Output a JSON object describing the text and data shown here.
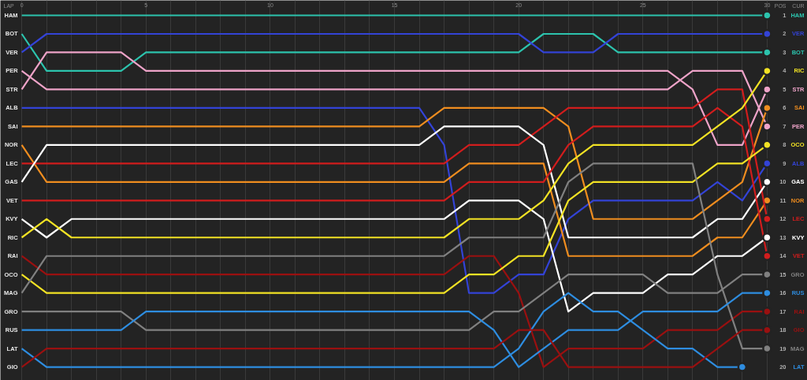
{
  "chart_data": {
    "type": "line",
    "xlabel": "LAP",
    "ylabel": "POS",
    "annotations": [
      "CUR"
    ],
    "x": [
      0,
      1,
      2,
      3,
      4,
      5,
      6,
      7,
      8,
      9,
      10,
      11,
      12,
      13,
      14,
      15,
      16,
      17,
      18,
      19,
      20,
      21,
      22,
      23,
      24,
      25,
      26,
      27,
      28,
      29,
      30
    ],
    "xlim": [
      -0.86,
      31.62
    ],
    "xticks": [
      0,
      {
        "value": 1,
        "label": null
      },
      {
        "value": 2,
        "label": null
      },
      {
        "value": 3,
        "label": null
      },
      {
        "value": 4,
        "label": null
      },
      5,
      {
        "value": 6,
        "label": null
      },
      {
        "value": 7,
        "label": null
      },
      {
        "value": 8,
        "label": null
      },
      {
        "value": 9,
        "label": null
      },
      10,
      {
        "value": 11,
        "label": null
      },
      {
        "value": 12,
        "label": null
      },
      {
        "value": 13,
        "label": null
      },
      {
        "value": 14,
        "label": null
      },
      15,
      {
        "value": 16,
        "label": null
      },
      {
        "value": 17,
        "label": null
      },
      {
        "value": 18,
        "label": null
      },
      {
        "value": 19,
        "label": null
      },
      20,
      {
        "value": 21,
        "label": null
      },
      {
        "value": 22,
        "label": null
      },
      {
        "value": 23,
        "label": null
      },
      {
        "value": 24,
        "label": null
      },
      25,
      {
        "value": 26,
        "label": null
      },
      {
        "value": 27,
        "label": null
      },
      {
        "value": 28,
        "label": null
      },
      {
        "value": 29,
        "label": null
      },
      30
    ],
    "ylim": [
      20.72,
      0.19
    ],
    "yticks": [
      1,
      2,
      3,
      4,
      5,
      6,
      7,
      8,
      9,
      10,
      11,
      12,
      13,
      14,
      15,
      16,
      17,
      18,
      19,
      20
    ],
    "grid": "x",
    "legend": false,
    "line_style": "solid",
    "series": [
      {
        "name": "HAM",
        "color": "#2cc3ad",
        "values": [
          1,
          1,
          1,
          1,
          1,
          1,
          1,
          1,
          1,
          1,
          1,
          1,
          1,
          1,
          1,
          1,
          1,
          1,
          1,
          1,
          1,
          1,
          1,
          1,
          1,
          1,
          1,
          1,
          1,
          1,
          1
        ]
      },
      {
        "name": "BOT",
        "color": "#2cc3ad",
        "values": [
          2,
          4,
          4,
          4,
          4,
          3,
          3,
          3,
          3,
          3,
          3,
          3,
          3,
          3,
          3,
          3,
          3,
          3,
          3,
          3,
          3,
          2,
          2,
          2,
          3,
          3,
          3,
          3,
          3,
          3,
          3
        ]
      },
      {
        "name": "VER",
        "color": "#3343d6",
        "values": [
          3,
          2,
          2,
          2,
          2,
          2,
          2,
          2,
          2,
          2,
          2,
          2,
          2,
          2,
          2,
          2,
          2,
          2,
          2,
          2,
          2,
          3,
          3,
          3,
          2,
          2,
          2,
          2,
          2,
          2,
          2
        ]
      },
      {
        "name": "PER",
        "color": "#eea3c8",
        "values": [
          4,
          5,
          5,
          5,
          5,
          5,
          5,
          5,
          5,
          5,
          5,
          5,
          5,
          5,
          5,
          5,
          5,
          5,
          5,
          5,
          5,
          5,
          5,
          5,
          5,
          5,
          5,
          4,
          4,
          4,
          7
        ]
      },
      {
        "name": "STR",
        "color": "#eea3c8",
        "values": [
          5,
          3,
          3,
          3,
          3,
          4,
          4,
          4,
          4,
          4,
          4,
          4,
          4,
          4,
          4,
          4,
          4,
          4,
          4,
          4,
          4,
          4,
          4,
          4,
          4,
          4,
          4,
          5,
          8,
          8,
          5
        ]
      },
      {
        "name": "ALB",
        "color": "#3343d6",
        "values": [
          6,
          6,
          6,
          6,
          6,
          6,
          6,
          6,
          6,
          6,
          6,
          6,
          6,
          6,
          6,
          6,
          6,
          8,
          16,
          16,
          15,
          15,
          12,
          11,
          11,
          11,
          11,
          11,
          10,
          11,
          9
        ]
      },
      {
        "name": "SAI",
        "color": "#ef8d1f",
        "values": [
          7,
          7,
          7,
          7,
          7,
          7,
          7,
          7,
          7,
          7,
          7,
          7,
          7,
          7,
          7,
          7,
          7,
          6,
          6,
          6,
          6,
          6,
          7,
          12,
          12,
          12,
          12,
          12,
          11,
          10,
          6
        ]
      },
      {
        "name": "NOR",
        "color": "#ef8d1f",
        "values": [
          8,
          10,
          10,
          10,
          10,
          10,
          10,
          10,
          10,
          10,
          10,
          10,
          10,
          10,
          10,
          10,
          10,
          10,
          9,
          9,
          9,
          9,
          14,
          14,
          14,
          14,
          14,
          14,
          13,
          13,
          11
        ]
      },
      {
        "name": "LEC",
        "color": "#d11d1d",
        "values": [
          9,
          9,
          9,
          9,
          9,
          9,
          9,
          9,
          9,
          9,
          9,
          9,
          9,
          9,
          9,
          9,
          9,
          9,
          8,
          8,
          8,
          7,
          6,
          6,
          6,
          6,
          6,
          6,
          5,
          5,
          12
        ]
      },
      {
        "name": "GAS",
        "color": "#ffffff",
        "values": [
          10,
          8,
          8,
          8,
          8,
          8,
          8,
          8,
          8,
          8,
          8,
          8,
          8,
          8,
          8,
          8,
          8,
          7,
          7,
          7,
          7,
          8,
          13,
          13,
          13,
          13,
          13,
          13,
          12,
          12,
          10
        ]
      },
      {
        "name": "VET",
        "color": "#d11d1d",
        "values": [
          11,
          11,
          11,
          11,
          11,
          11,
          11,
          11,
          11,
          11,
          11,
          11,
          11,
          11,
          11,
          11,
          11,
          11,
          10,
          10,
          10,
          10,
          8,
          7,
          7,
          7,
          7,
          7,
          6,
          7,
          14
        ]
      },
      {
        "name": "KVY",
        "color": "#ffffff",
        "values": [
          12,
          13,
          12,
          12,
          12,
          12,
          12,
          12,
          12,
          12,
          12,
          12,
          12,
          12,
          12,
          12,
          12,
          12,
          11,
          11,
          11,
          12,
          17,
          16,
          16,
          16,
          15,
          15,
          14,
          14,
          13
        ]
      },
      {
        "name": "RIC",
        "color": "#f2e224",
        "values": [
          13,
          12,
          13,
          13,
          13,
          13,
          13,
          13,
          13,
          13,
          13,
          13,
          13,
          13,
          13,
          13,
          13,
          13,
          12,
          12,
          12,
          11,
          9,
          8,
          8,
          8,
          8,
          8,
          7,
          6,
          4
        ]
      },
      {
        "name": "RAI",
        "color": "#9a1010",
        "values": [
          14,
          15,
          15,
          15,
          15,
          15,
          15,
          15,
          15,
          15,
          15,
          15,
          15,
          15,
          15,
          15,
          15,
          15,
          14,
          14,
          16,
          20,
          19,
          19,
          19,
          19,
          18,
          18,
          18,
          17,
          17
        ]
      },
      {
        "name": "OCO",
        "color": "#f2e224",
        "values": [
          15,
          16,
          16,
          16,
          16,
          16,
          16,
          16,
          16,
          16,
          16,
          16,
          16,
          16,
          16,
          16,
          16,
          16,
          15,
          15,
          14,
          14,
          11,
          10,
          10,
          10,
          10,
          10,
          9,
          9,
          8
        ]
      },
      {
        "name": "MAG",
        "color": "#808080",
        "values": [
          16,
          14,
          14,
          14,
          14,
          14,
          14,
          14,
          14,
          14,
          14,
          14,
          14,
          14,
          14,
          14,
          14,
          14,
          13,
          13,
          13,
          13,
          10,
          9,
          9,
          9,
          9,
          9,
          15,
          19,
          19
        ]
      },
      {
        "name": "GRO",
        "color": "#808080",
        "values": [
          17,
          17,
          17,
          17,
          17,
          18,
          18,
          18,
          18,
          18,
          18,
          18,
          18,
          18,
          18,
          18,
          18,
          18,
          18,
          17,
          17,
          16,
          15,
          15,
          15,
          15,
          16,
          16,
          16,
          15,
          15
        ]
      },
      {
        "name": "RUS",
        "color": "#2e8de0",
        "values": [
          18,
          18,
          18,
          18,
          18,
          17,
          17,
          17,
          17,
          17,
          17,
          17,
          17,
          17,
          17,
          17,
          17,
          17,
          17,
          18,
          20,
          19,
          18,
          18,
          18,
          17,
          17,
          17,
          17,
          16,
          16
        ]
      },
      {
        "name": "LAT",
        "color": "#2e8de0",
        "values": [
          19,
          20,
          20,
          20,
          20,
          20,
          20,
          20,
          20,
          20,
          20,
          20,
          20,
          20,
          20,
          20,
          20,
          20,
          20,
          20,
          19,
          17,
          16,
          17,
          17,
          18,
          19,
          19,
          20,
          20,
          null
        ]
      },
      {
        "name": "GIO",
        "color": "#9a1010",
        "values": [
          20,
          19,
          19,
          19,
          19,
          19,
          19,
          19,
          19,
          19,
          19,
          19,
          19,
          19,
          19,
          19,
          19,
          19,
          19,
          19,
          18,
          18,
          20,
          20,
          20,
          20,
          20,
          20,
          19,
          18,
          18
        ]
      }
    ]
  }
}
